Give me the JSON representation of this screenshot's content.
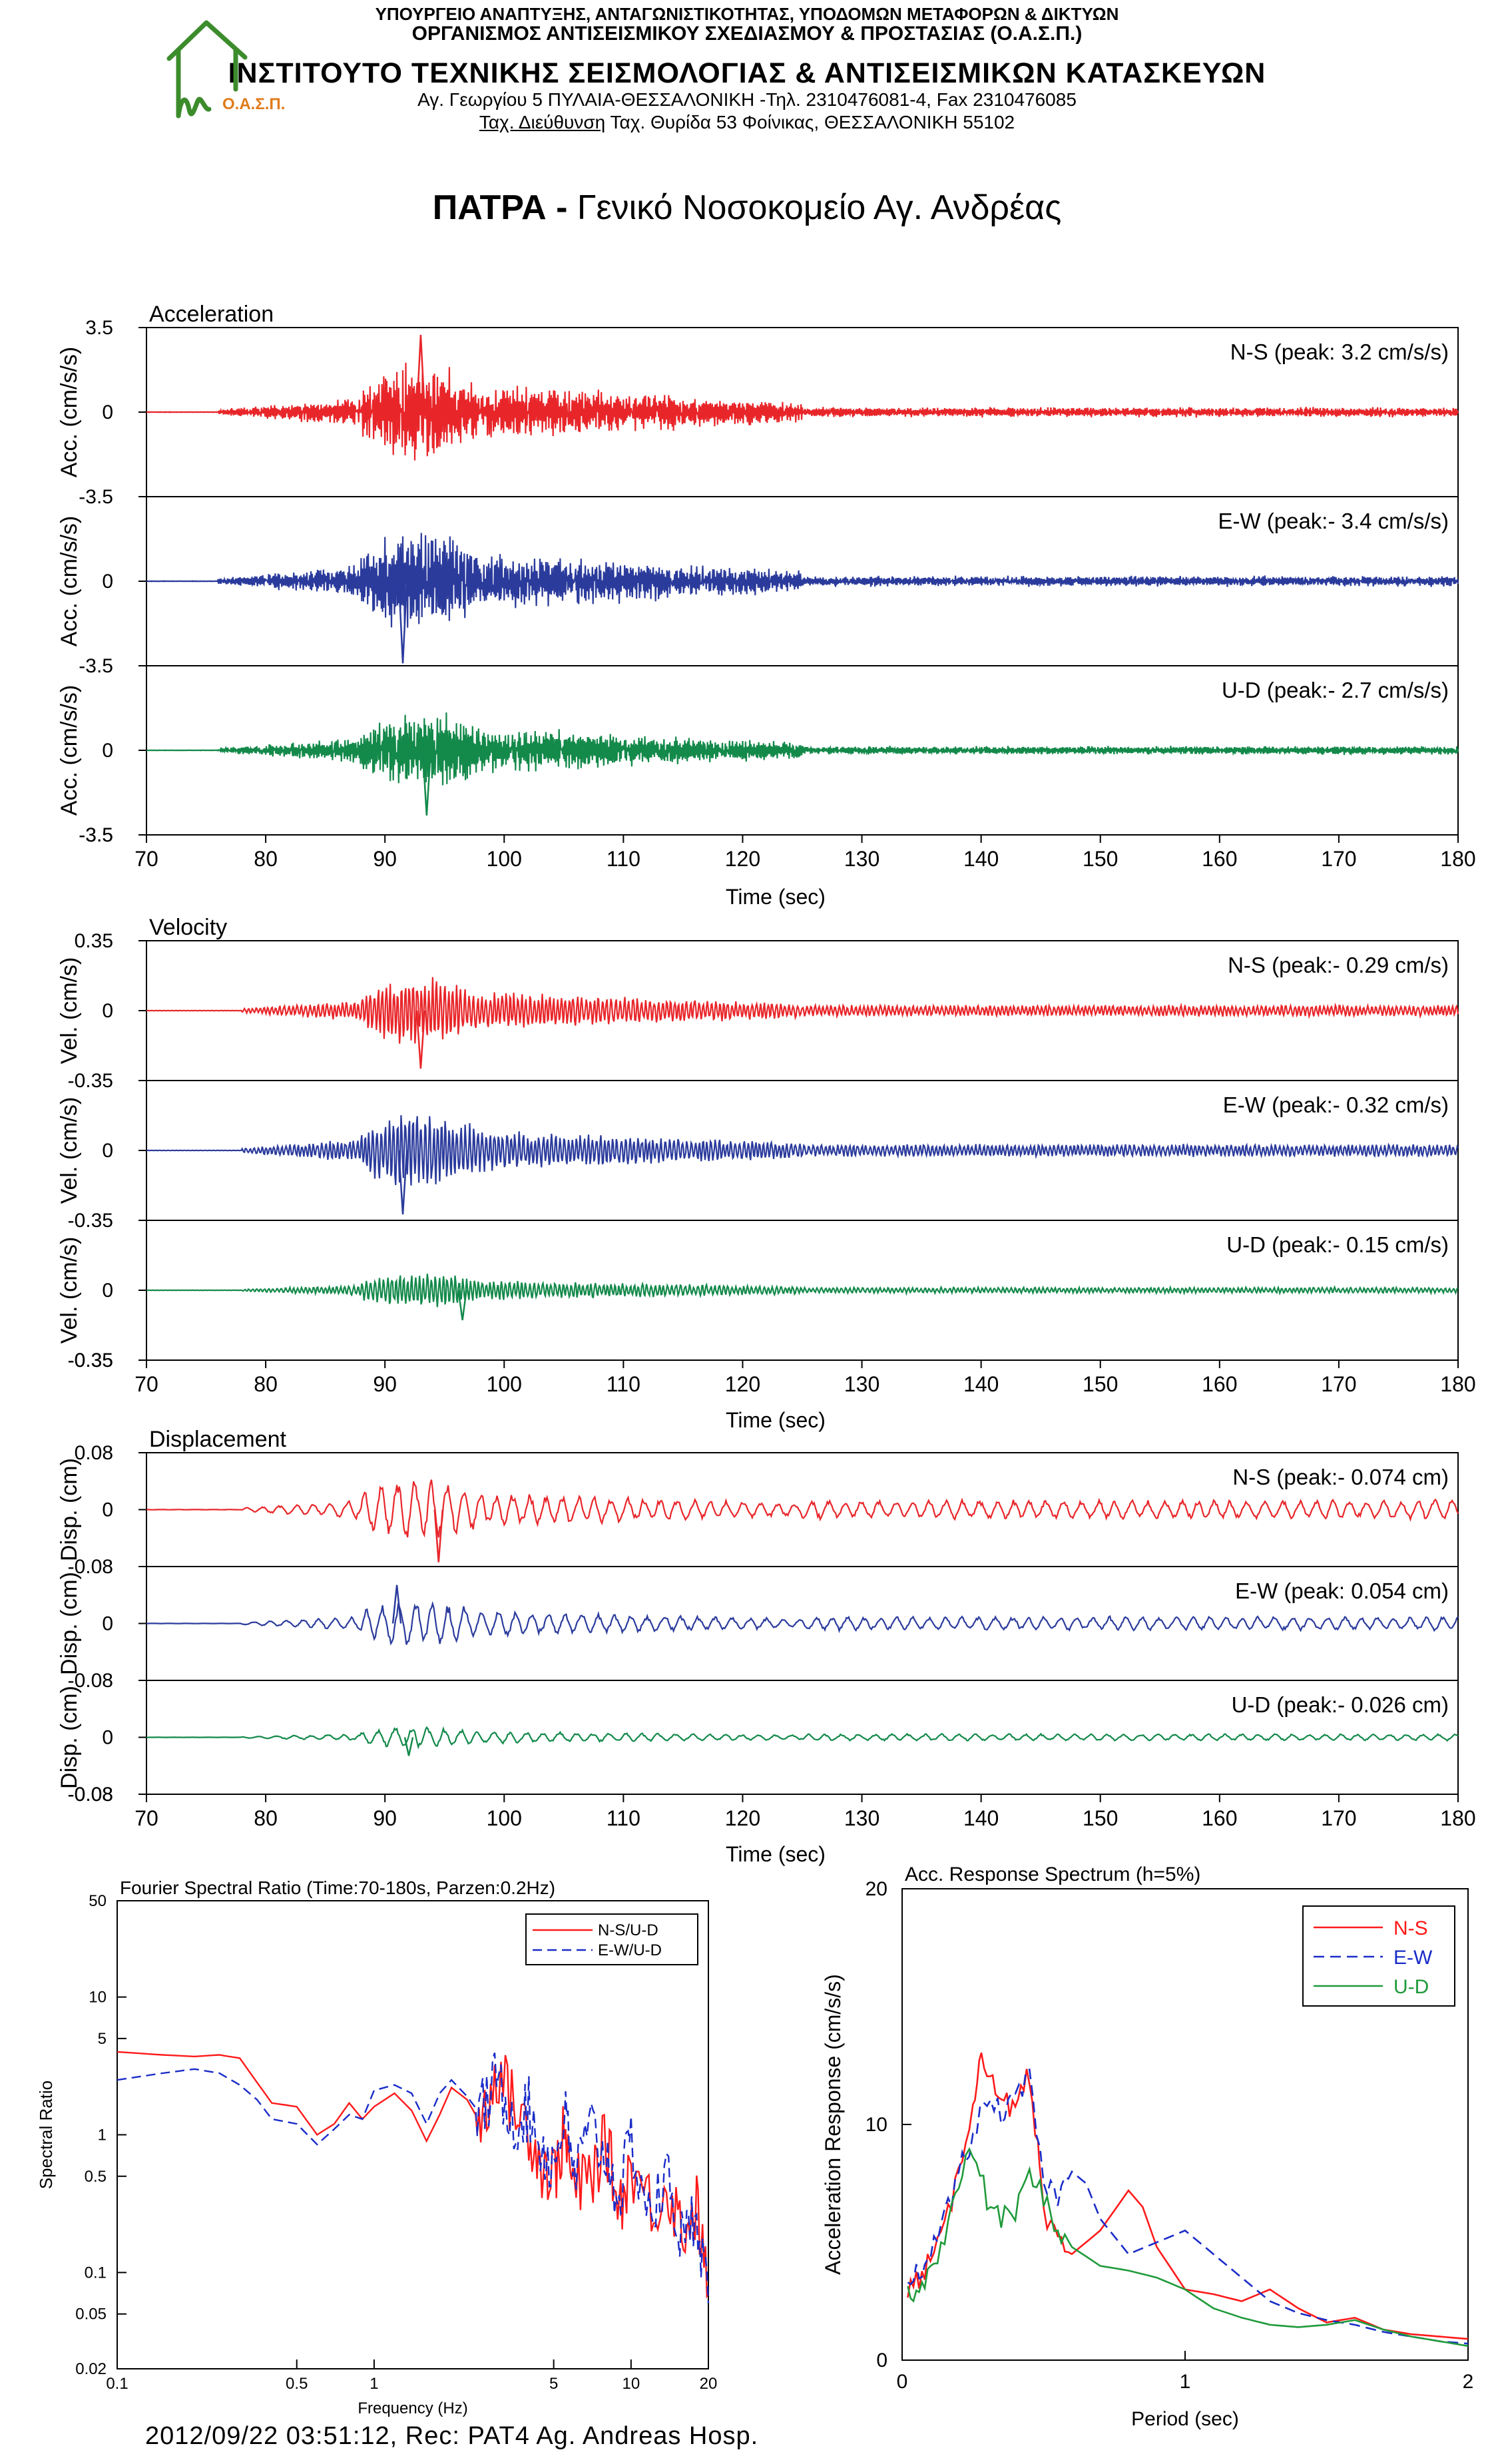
{
  "header": {
    "line1": "ΥΠΟΥΡΓΕΙΟ ΑΝΑΠΤΥΞΗΣ, ΑΝΤΑΓΩΝΙΣΤΙΚΟΤΗΤΑΣ, ΥΠΟΔΟΜΩΝ ΜΕΤΑΦΟΡΩΝ & ΔΙΚΤΥΩΝ",
    "line2": "ΟΡΓΑΝΙΣΜΟΣ ΑΝΤΙΣΕΙΣΜΙΚΟΥ ΣΧΕΔΙΑΣΜΟΥ & ΠΡΟΣΤΑΣΙΑΣ (Ο.Α.Σ.Π.)",
    "line3": "ΙΝΣΤΙΤΟΥΤΟ ΤΕΧΝΙΚΗΣ ΣΕΙΣΜΟΛΟΓΙΑΣ & ΑΝΤΙΣΕΙΣΜΙΚΩΝ ΚΑΤΑΣΚΕΥΩΝ",
    "line4": "Αγ. Γεωργίου 5 ΠΥΛΑΙΑ-ΘΕΣΣΑΛΟΝΙΚΗ -Τηλ. 2310476081-4,  Fax 2310476085",
    "line5_underlined": "Ταχ. Διεύθυνση",
    "line5_rest": " Ταχ. Θυρίδα 53 Φοίνικας, ΘΕΣΣΑΛΟΝΙΚΗ 55102",
    "logo_text": "Ο.Α.Σ.Π."
  },
  "title": {
    "bold": "ΠΑΤΡΑ - ",
    "normal": "Γενικό Νοσοκομείο Αγ. Ανδρέας"
  },
  "footer": "2012/09/22 03:51:12, Rec: PAT4 Ag. Andreas Hosp.",
  "colors": {
    "ns": "#e8262a",
    "ew": "#2b3b9c",
    "ud": "#13894a",
    "ns_spec": "#ff1a1a",
    "ew_spec": "#1a2cc8",
    "ud_spec": "#1f9a3a"
  },
  "chart_data": [
    {
      "type": "line",
      "title": "Acceleration",
      "xlabel": "Time (sec)",
      "xlim": [
        70,
        180
      ],
      "xticks": [
        70,
        80,
        90,
        100,
        110,
        120,
        130,
        140,
        150,
        160,
        170,
        180
      ],
      "ylim": [
        -3.5,
        3.5
      ],
      "yticks": [
        "3.5",
        "0",
        "-3.5"
      ],
      "series": [
        {
          "name": "N-S",
          "ylabel": "Acc. (cm/s/s)",
          "label": "N-S (peak: 3.2 cm/s/s)",
          "peak": 3.2,
          "peak_time": 93.0,
          "onset": 76,
          "color": "#e8262a"
        },
        {
          "name": "E-W",
          "ylabel": "Acc. (cm/s/s)",
          "label": "E-W (peak:- 3.4 cm/s/s)",
          "peak": -3.4,
          "peak_time": 91.5,
          "onset": 76,
          "color": "#2b3b9c"
        },
        {
          "name": "U-D",
          "ylabel": "Acc. (cm/s/s)",
          "label": "U-D (peak:- 2.7 cm/s/s)",
          "peak": -2.7,
          "peak_time": 93.5,
          "onset": 76,
          "color": "#13894a"
        }
      ]
    },
    {
      "type": "line",
      "title": "Velocity",
      "xlabel": "Time (sec)",
      "xlim": [
        70,
        180
      ],
      "xticks": [
        70,
        80,
        90,
        100,
        110,
        120,
        130,
        140,
        150,
        160,
        170,
        180
      ],
      "ylim": [
        -0.35,
        0.35
      ],
      "yticks": [
        "0.35",
        "0",
        "-0.35"
      ],
      "series": [
        {
          "name": "N-S",
          "ylabel": "Vel. (cm/s)",
          "label": "N-S (peak:- 0.29 cm/s)",
          "peak": -0.29,
          "peak_time": 93.0,
          "onset": 78,
          "color": "#e8262a"
        },
        {
          "name": "E-W",
          "ylabel": "Vel. (cm/s)",
          "label": "E-W (peak:- 0.32 cm/s)",
          "peak": -0.32,
          "peak_time": 91.5,
          "onset": 78,
          "color": "#2b3b9c"
        },
        {
          "name": "U-D",
          "ylabel": "Vel. (cm/s)",
          "label": "U-D (peak:- 0.15 cm/s)",
          "peak": -0.15,
          "peak_time": 96.5,
          "onset": 78,
          "color": "#13894a"
        }
      ]
    },
    {
      "type": "line",
      "title": "Displacement",
      "xlabel": "Time (sec)",
      "xlim": [
        70,
        180
      ],
      "xticks": [
        70,
        80,
        90,
        100,
        110,
        120,
        130,
        140,
        150,
        160,
        170,
        180
      ],
      "ylim": [
        -0.08,
        0.08
      ],
      "yticks": [
        "0.08",
        "0",
        "-0.08"
      ],
      "series": [
        {
          "name": "N-S",
          "ylabel": "Disp. (cm)",
          "label": "N-S (peak:- 0.074 cm)",
          "peak": -0.074,
          "peak_time": 94.5,
          "onset": 78,
          "color": "#e8262a"
        },
        {
          "name": "E-W",
          "ylabel": "Disp. (cm)",
          "label": "E-W (peak: 0.054 cm)",
          "peak": 0.054,
          "peak_time": 91.0,
          "onset": 78,
          "color": "#2b3b9c"
        },
        {
          "name": "U-D",
          "ylabel": "Disp. (cm)",
          "label": "U-D (peak:- 0.026 cm)",
          "peak": -0.026,
          "peak_time": 92.0,
          "onset": 78,
          "color": "#13894a"
        }
      ]
    },
    {
      "type": "line",
      "title": "Fourier Spectral Ratio (Time:70-180s, Parzen:0.2Hz)",
      "xlabel": "Frequency (Hz)",
      "ylabel": "Spectral Ratio",
      "xscale": "log",
      "yscale": "log",
      "xlim": [
        0.1,
        20
      ],
      "ylim": [
        0.02,
        50
      ],
      "xticks": [
        "0.1",
        "0.5",
        "1",
        "5",
        "10",
        "20"
      ],
      "xtick_values": [
        0.1,
        0.5,
        1,
        5,
        10,
        20
      ],
      "yticks": [
        "50",
        "10",
        "5",
        "1",
        "0.5",
        "0.1",
        "0.05",
        "0.02"
      ],
      "ytick_values": [
        50,
        10,
        5,
        1,
        0.5,
        0.1,
        0.05,
        0.02
      ],
      "legend": "top-right",
      "series": [
        {
          "name": "N-S/U-D",
          "style": "solid",
          "color": "#ff1a1a",
          "x": [
            0.1,
            0.15,
            0.2,
            0.25,
            0.3,
            0.35,
            0.4,
            0.5,
            0.6,
            0.7,
            0.8,
            0.9,
            1.0,
            1.2,
            1.4,
            1.6,
            1.8,
            2.0,
            2.3,
            2.6,
            3.0,
            3.5,
            4.0,
            4.5,
            5.0,
            5.5,
            6.0,
            7.0,
            8.0,
            9.0,
            10.0,
            12.0,
            14.0,
            16.0,
            18.0,
            20.0
          ],
          "y": [
            4.0,
            3.8,
            3.7,
            3.8,
            3.6,
            2.4,
            1.7,
            1.6,
            1.0,
            1.2,
            1.7,
            1.3,
            1.6,
            2.0,
            1.5,
            0.9,
            1.4,
            2.2,
            1.8,
            1.2,
            3.0,
            1.6,
            1.1,
            0.6,
            0.5,
            1.0,
            0.4,
            0.5,
            0.9,
            0.3,
            0.6,
            0.3,
            0.4,
            0.2,
            0.3,
            0.07
          ]
        },
        {
          "name": "E-W/U-D",
          "style": "dashed",
          "color": "#1a2cc8",
          "x": [
            0.1,
            0.15,
            0.2,
            0.25,
            0.3,
            0.35,
            0.4,
            0.5,
            0.6,
            0.7,
            0.8,
            0.9,
            1.0,
            1.2,
            1.4,
            1.6,
            1.8,
            2.0,
            2.3,
            2.6,
            3.0,
            3.5,
            4.0,
            4.5,
            5.0,
            5.5,
            6.0,
            7.0,
            8.0,
            9.0,
            10.0,
            12.0,
            14.0,
            16.0,
            18.0,
            20.0
          ],
          "y": [
            2.5,
            2.8,
            3.0,
            2.8,
            2.3,
            1.8,
            1.3,
            1.2,
            0.85,
            1.1,
            1.4,
            1.3,
            2.1,
            2.3,
            2.0,
            1.2,
            2.0,
            2.5,
            1.9,
            1.4,
            2.5,
            1.3,
            1.5,
            0.8,
            0.6,
            1.4,
            0.5,
            1.1,
            0.7,
            0.35,
            0.9,
            0.25,
            0.5,
            0.15,
            0.3,
            0.06
          ]
        }
      ]
    },
    {
      "type": "line",
      "title": "Acc. Response Spectrum (h=5%)",
      "xlabel": "Period (sec)",
      "ylabel": "Acceleration Response (cm/s/s)",
      "xlim": [
        0,
        2
      ],
      "ylim": [
        0,
        20
      ],
      "xticks": [
        "0",
        "1",
        "2"
      ],
      "yticks": [
        "0",
        "10",
        "20"
      ],
      "legend": "top-right",
      "series": [
        {
          "name": "N-S",
          "style": "solid",
          "color": "#ff1a1a",
          "x": [
            0.02,
            0.06,
            0.1,
            0.15,
            0.2,
            0.25,
            0.28,
            0.32,
            0.36,
            0.4,
            0.44,
            0.48,
            0.5,
            0.55,
            0.6,
            0.7,
            0.8,
            0.85,
            0.9,
            1.0,
            1.1,
            1.2,
            1.3,
            1.4,
            1.5,
            1.6,
            1.7,
            1.8,
            1.9,
            2.0
          ],
          "y": [
            3.0,
            3.5,
            4.2,
            5.5,
            8.0,
            11.0,
            12.8,
            12.0,
            11.0,
            10.5,
            12.0,
            9.0,
            6.0,
            5.0,
            4.5,
            5.5,
            7.2,
            6.5,
            4.8,
            3.0,
            2.8,
            2.5,
            3.0,
            2.2,
            1.6,
            1.8,
            1.3,
            1.1,
            1.0,
            0.9
          ]
        },
        {
          "name": "E-W",
          "style": "dashed",
          "color": "#1a2cc8",
          "x": [
            0.02,
            0.06,
            0.1,
            0.15,
            0.2,
            0.25,
            0.3,
            0.35,
            0.4,
            0.45,
            0.5,
            0.55,
            0.6,
            0.65,
            0.7,
            0.8,
            0.9,
            1.0,
            1.1,
            1.2,
            1.3,
            1.4,
            1.5,
            1.6,
            1.7,
            1.8,
            1.9,
            2.0
          ],
          "y": [
            3.2,
            3.8,
            4.5,
            6.0,
            8.0,
            9.5,
            11.0,
            10.5,
            11.0,
            12.0,
            7.5,
            7.0,
            8.0,
            7.5,
            6.0,
            4.5,
            5.0,
            5.5,
            4.5,
            3.5,
            2.5,
            2.0,
            1.7,
            1.5,
            1.2,
            1.0,
            0.8,
            0.7
          ]
        },
        {
          "name": "U-D",
          "style": "solid",
          "color": "#1f9a3a",
          "x": [
            0.02,
            0.06,
            0.1,
            0.15,
            0.2,
            0.25,
            0.3,
            0.35,
            0.4,
            0.45,
            0.5,
            0.55,
            0.6,
            0.7,
            0.8,
            0.9,
            1.0,
            1.1,
            1.2,
            1.3,
            1.4,
            1.5,
            1.6,
            1.7,
            1.8,
            1.9,
            2.0
          ],
          "y": [
            2.8,
            3.2,
            3.8,
            5.0,
            7.5,
            9.0,
            6.8,
            6.0,
            6.3,
            7.8,
            7.0,
            5.5,
            4.8,
            4.0,
            3.8,
            3.5,
            3.0,
            2.2,
            1.8,
            1.5,
            1.4,
            1.5,
            1.7,
            1.3,
            1.0,
            0.8,
            0.6
          ]
        }
      ]
    }
  ]
}
